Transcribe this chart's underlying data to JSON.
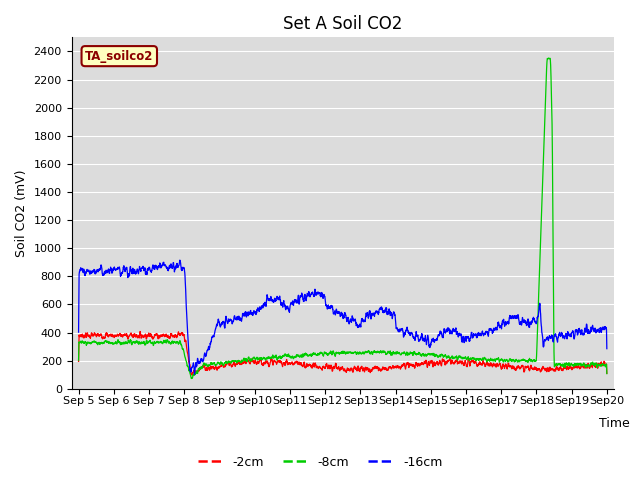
{
  "title": "Set A Soil CO2",
  "ylabel": "Soil CO2 (mV)",
  "xlabel": "Time",
  "ylim": [
    0,
    2500
  ],
  "x_tick_labels": [
    "Sep 5",
    "Sep 6",
    "Sep 7",
    "Sep 8",
    "Sep 9",
    "Sep 10",
    "Sep 11",
    "Sep 12",
    "Sep 13",
    "Sep 14",
    "Sep 15",
    "Sep 16",
    "Sep 17",
    "Sep 18",
    "Sep 19",
    "Sep 20"
  ],
  "legend_label": "TA_soilco2",
  "legend_bg": "#FFFFC0",
  "legend_border": "#8B0000",
  "line_colors": [
    "#FF0000",
    "#00CC00",
    "#0000FF"
  ],
  "line_labels": [
    "-2cm",
    "-8cm",
    "-16cm"
  ],
  "bg_color": "#DCDCDC",
  "grid_color": "#FFFFFF",
  "title_fontsize": 12,
  "axis_label_fontsize": 9,
  "tick_fontsize": 8
}
